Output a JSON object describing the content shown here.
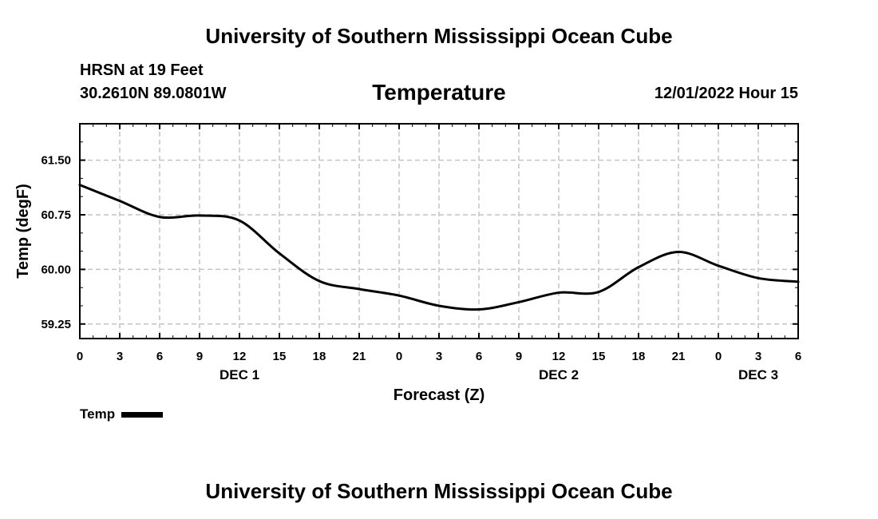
{
  "header": {
    "title": "University of Southern Mississippi Ocean Cube",
    "station": "HRSN at 19 Feet",
    "coords": "30.2610N  89.0801W",
    "variable": "Temperature",
    "datetime": "12/01/2022 Hour 15"
  },
  "legend": {
    "label": "Temp"
  },
  "footer": {
    "title": "University of Southern Mississippi Ocean Cube"
  },
  "chart_data": {
    "type": "line",
    "title": "Temperature",
    "xlabel": "Forecast (Z)",
    "ylabel": "Temp (degF)",
    "xlim": [
      0,
      54
    ],
    "ylim": [
      59.05,
      62.0
    ],
    "x_ticks": [
      0,
      3,
      6,
      9,
      12,
      15,
      18,
      21,
      24,
      27,
      30,
      33,
      36,
      39,
      42,
      45,
      48,
      51,
      54
    ],
    "x_tick_labels": [
      "0",
      "3",
      "6",
      "9",
      "12",
      "15",
      "18",
      "21",
      "0",
      "3",
      "6",
      "9",
      "12",
      "15",
      "18",
      "21",
      "0",
      "3",
      "6"
    ],
    "x_day_labels": [
      {
        "label": "DEC 1",
        "at": 12
      },
      {
        "label": "DEC 2",
        "at": 36
      },
      {
        "label": "DEC 3",
        "at": 51
      }
    ],
    "y_ticks": [
      59.25,
      60.0,
      60.75,
      61.5
    ],
    "y_tick_labels": [
      "59.25",
      "60.00",
      "60.75",
      "61.50"
    ],
    "y_minor_step": 0.25,
    "grid": true,
    "legend_position": "bottom-left",
    "series": [
      {
        "name": "Temp",
        "x": [
          0,
          3,
          6,
          9,
          12,
          15,
          18,
          21,
          24,
          27,
          30,
          33,
          36,
          39,
          42,
          45,
          48,
          51,
          54
        ],
        "values": [
          61.16,
          60.94,
          60.72,
          60.74,
          60.67,
          60.22,
          59.84,
          59.73,
          59.64,
          59.5,
          59.45,
          59.55,
          59.68,
          59.69,
          60.03,
          60.24,
          60.05,
          59.88,
          59.83
        ]
      }
    ]
  }
}
